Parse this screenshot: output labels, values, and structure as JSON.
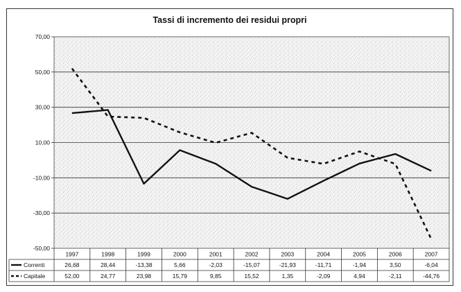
{
  "chart_data": {
    "type": "line",
    "title": "Tassi di incremento dei residui propri",
    "categories": [
      "1997",
      "1998",
      "1999",
      "2000",
      "2001",
      "2002",
      "2003",
      "2004",
      "2005",
      "2006",
      "2007"
    ],
    "ylim": [
      -50,
      70
    ],
    "yticks": [
      70,
      50,
      30,
      10,
      -10,
      -30,
      -50
    ],
    "ytick_labels": [
      "70,00",
      "50,00",
      "30,00",
      "10,00",
      "-10,00",
      "-30,00",
      "-50,00"
    ],
    "grid": true,
    "legend": "data-table",
    "series": [
      {
        "name": "Correnti",
        "style": "solid",
        "color": "#111111",
        "values": [
          26.68,
          28.44,
          -13.38,
          5.66,
          -2.03,
          -15.07,
          -21.93,
          -11.71,
          -1.94,
          3.5,
          -6.04
        ],
        "labels": [
          "26,68",
          "28,44",
          "-13,38",
          "5,66",
          "-2,03",
          "-15,07",
          "-21,93",
          "-11,71",
          "-1,94",
          "3,50",
          "-6,04"
        ]
      },
      {
        "name": "Capitale",
        "style": "dashed",
        "color": "#111111",
        "values": [
          52.0,
          24.77,
          23.98,
          15.79,
          9.85,
          15.52,
          1.35,
          -2.09,
          4.94,
          -2.11,
          -44.76
        ],
        "labels": [
          "52,00",
          "24,77",
          "23,98",
          "15,79",
          "9,85",
          "15,52",
          "1,35",
          "-2,09",
          "4,94",
          "-2,11",
          "-44,76"
        ]
      }
    ]
  }
}
